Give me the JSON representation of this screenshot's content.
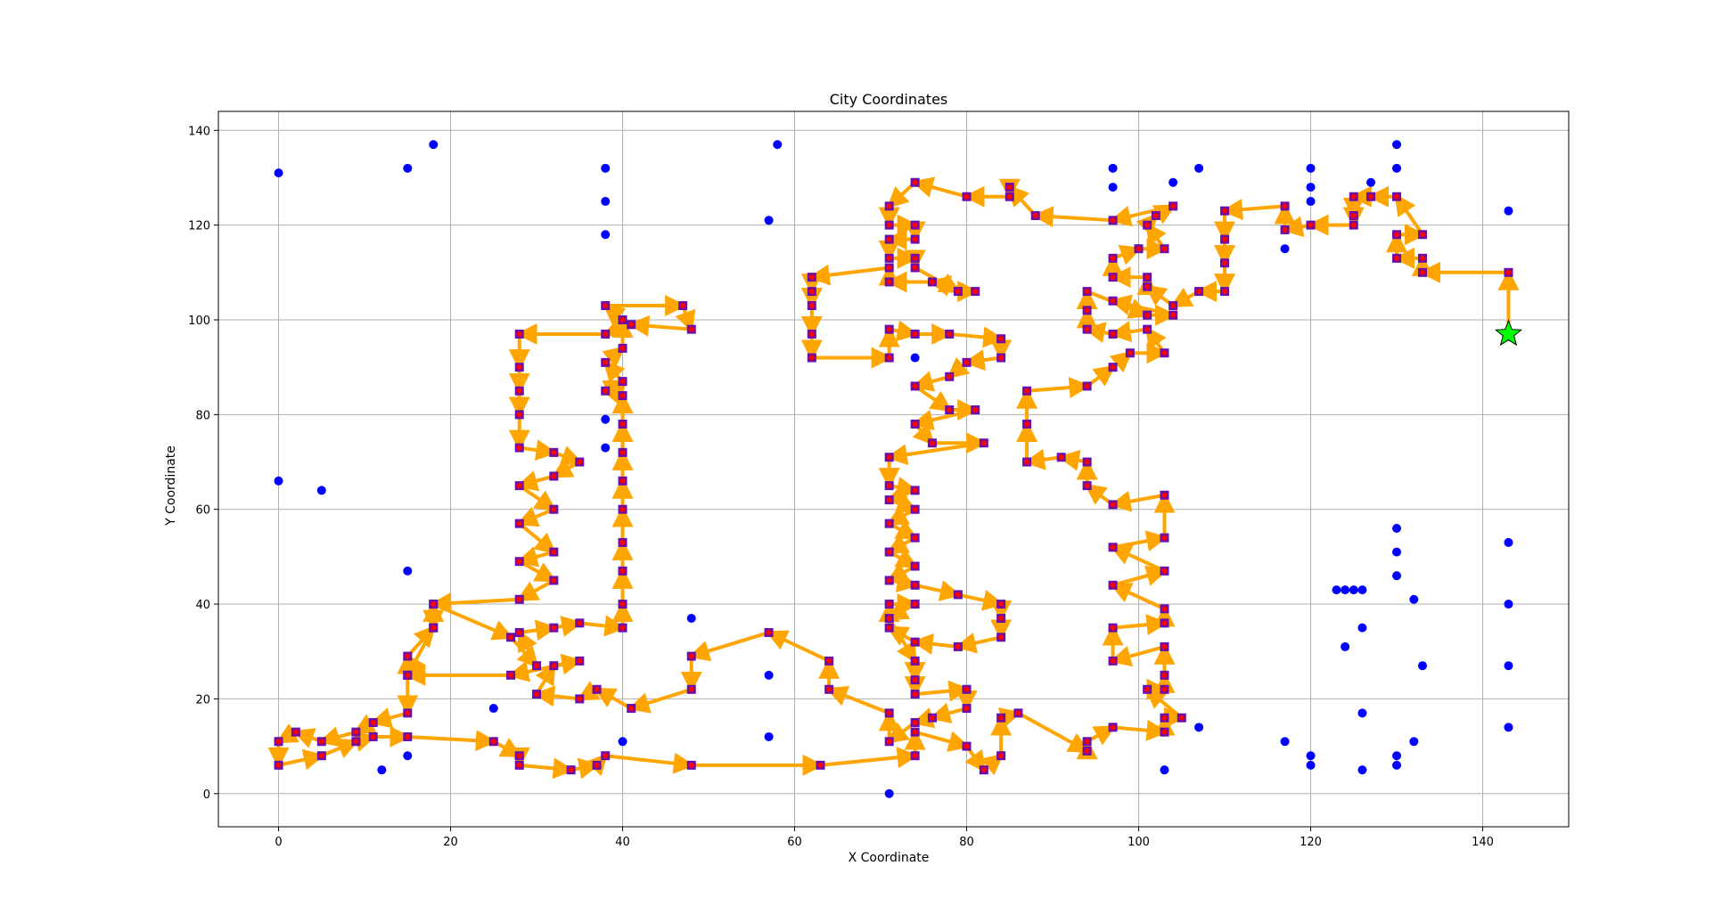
{
  "chart_data": {
    "type": "scatter",
    "title": "City Coordinates",
    "xlabel": "X Coordinate",
    "ylabel": "Y Coordinate",
    "xlim": [
      -7,
      150
    ],
    "ylim": [
      -7,
      144
    ],
    "xticks": [
      0,
      20,
      40,
      60,
      80,
      100,
      120,
      140
    ],
    "yticks": [
      0,
      20,
      40,
      60,
      80,
      100,
      120,
      140
    ],
    "grid": true,
    "colors": {
      "cities": "#0000ff",
      "visited": "#ff0000",
      "route": "#ffa500",
      "start": "#00ff00"
    },
    "start_city": [
      143,
      97
    ],
    "cities": [
      [
        0,
        131
      ],
      [
        0,
        66
      ],
      [
        12,
        5
      ],
      [
        15,
        8
      ],
      [
        15,
        47
      ],
      [
        15,
        132
      ],
      [
        18,
        137
      ],
      [
        5,
        64
      ],
      [
        25,
        18
      ],
      [
        38,
        132
      ],
      [
        38,
        125
      ],
      [
        38,
        118
      ],
      [
        38,
        79
      ],
      [
        38,
        73
      ],
      [
        40,
        11
      ],
      [
        48,
        37
      ],
      [
        57,
        25
      ],
      [
        57,
        12
      ],
      [
        57,
        121
      ],
      [
        58,
        137
      ],
      [
        71,
        0
      ],
      [
        74,
        92
      ],
      [
        97,
        132
      ],
      [
        97,
        128
      ],
      [
        103,
        5
      ],
      [
        104,
        129
      ],
      [
        107,
        132
      ],
      [
        107,
        14
      ],
      [
        117,
        11
      ],
      [
        117,
        115
      ],
      [
        120,
        132
      ],
      [
        120,
        128
      ],
      [
        120,
        125
      ],
      [
        120,
        8
      ],
      [
        120,
        6
      ],
      [
        123,
        43
      ],
      [
        124,
        43
      ],
      [
        125,
        43
      ],
      [
        126,
        43
      ],
      [
        124,
        31
      ],
      [
        126,
        35
      ],
      [
        126,
        17
      ],
      [
        126,
        5
      ],
      [
        127,
        129
      ],
      [
        130,
        137
      ],
      [
        130,
        132
      ],
      [
        130,
        56
      ],
      [
        130,
        51
      ],
      [
        130,
        46
      ],
      [
        130,
        8
      ],
      [
        130,
        6
      ],
      [
        132,
        41
      ],
      [
        132,
        11
      ],
      [
        133,
        27
      ],
      [
        143,
        123
      ],
      [
        143,
        53
      ],
      [
        143,
        40
      ],
      [
        143,
        27
      ],
      [
        143,
        14
      ]
    ],
    "route": [
      [
        143,
        97
      ],
      [
        143,
        110
      ],
      [
        133,
        110
      ],
      [
        133,
        113
      ],
      [
        130,
        113
      ],
      [
        130,
        118
      ],
      [
        133,
        118
      ],
      [
        130,
        126
      ],
      [
        127,
        126
      ],
      [
        125,
        126
      ],
      [
        125,
        122
      ],
      [
        125,
        120
      ],
      [
        120,
        120
      ],
      [
        117,
        119
      ],
      [
        117,
        124
      ],
      [
        110,
        123
      ],
      [
        110,
        117
      ],
      [
        110,
        112
      ],
      [
        110,
        106
      ],
      [
        107,
        106
      ],
      [
        104,
        103
      ],
      [
        101,
        107
      ],
      [
        101,
        109
      ],
      [
        97,
        109
      ],
      [
        97,
        113
      ],
      [
        100,
        115
      ],
      [
        103,
        115
      ],
      [
        101,
        120
      ],
      [
        102,
        122
      ],
      [
        104,
        124
      ],
      [
        97,
        121
      ],
      [
        88,
        122
      ],
      [
        85,
        128
      ],
      [
        85,
        126
      ],
      [
        80,
        126
      ],
      [
        74,
        129
      ],
      [
        71,
        124
      ],
      [
        71,
        120
      ],
      [
        74,
        120
      ],
      [
        74,
        117
      ],
      [
        71,
        117
      ],
      [
        71,
        113
      ],
      [
        74,
        113
      ],
      [
        74,
        111
      ],
      [
        79,
        106
      ],
      [
        81,
        106
      ],
      [
        76,
        108
      ],
      [
        71,
        108
      ],
      [
        71,
        111
      ],
      [
        62,
        109
      ],
      [
        62,
        106
      ],
      [
        62,
        103
      ],
      [
        62,
        97
      ],
      [
        62,
        92
      ],
      [
        71,
        92
      ],
      [
        71,
        98
      ],
      [
        74,
        97
      ],
      [
        78,
        97
      ],
      [
        84,
        96
      ],
      [
        84,
        92
      ],
      [
        80,
        91
      ],
      [
        78,
        88
      ],
      [
        74,
        86
      ],
      [
        78,
        81
      ],
      [
        81,
        81
      ],
      [
        74,
        78
      ],
      [
        76,
        74
      ],
      [
        82,
        74
      ],
      [
        71,
        71
      ],
      [
        71,
        65
      ],
      [
        74,
        64
      ],
      [
        71,
        62
      ],
      [
        74,
        60
      ],
      [
        71,
        57
      ],
      [
        74,
        54
      ],
      [
        71,
        51
      ],
      [
        74,
        48
      ],
      [
        71,
        45
      ],
      [
        74,
        44
      ],
      [
        79,
        42
      ],
      [
        84,
        40
      ],
      [
        84,
        37
      ],
      [
        84,
        33
      ],
      [
        79,
        31
      ],
      [
        74,
        32
      ],
      [
        71,
        35
      ],
      [
        71,
        40
      ],
      [
        74,
        40
      ],
      [
        71,
        37
      ],
      [
        74,
        28
      ],
      [
        74,
        24
      ],
      [
        74,
        21
      ],
      [
        80,
        22
      ],
      [
        80,
        18
      ],
      [
        76,
        16
      ],
      [
        74,
        15
      ],
      [
        71,
        11
      ],
      [
        71,
        17
      ],
      [
        64,
        22
      ],
      [
        64,
        28
      ],
      [
        57,
        34
      ],
      [
        48,
        29
      ],
      [
        48,
        22
      ],
      [
        41,
        18
      ],
      [
        37,
        22
      ],
      [
        35,
        20
      ],
      [
        30,
        21
      ],
      [
        32,
        27
      ],
      [
        35,
        28
      ],
      [
        27,
        25
      ],
      [
        15,
        25
      ],
      [
        15,
        29
      ],
      [
        18,
        35
      ],
      [
        18,
        40
      ],
      [
        27,
        33
      ],
      [
        30,
        27
      ],
      [
        28,
        34
      ],
      [
        32,
        35
      ],
      [
        35,
        36
      ],
      [
        40,
        35
      ],
      [
        40,
        40
      ],
      [
        40,
        47
      ],
      [
        40,
        53
      ],
      [
        40,
        60
      ],
      [
        40,
        66
      ],
      [
        40,
        72
      ],
      [
        40,
        78
      ],
      [
        40,
        84
      ],
      [
        38,
        85
      ],
      [
        40,
        87
      ],
      [
        38,
        91
      ],
      [
        40,
        94
      ],
      [
        40,
        100
      ],
      [
        38,
        103
      ],
      [
        47,
        103
      ],
      [
        48,
        98
      ],
      [
        41,
        99
      ],
      [
        38,
        97
      ],
      [
        28,
        97
      ],
      [
        28,
        90
      ],
      [
        28,
        85
      ],
      [
        28,
        80
      ],
      [
        28,
        73
      ],
      [
        32,
        72
      ],
      [
        35,
        70
      ],
      [
        32,
        67
      ],
      [
        28,
        65
      ],
      [
        32,
        60
      ],
      [
        28,
        57
      ],
      [
        32,
        51
      ],
      [
        28,
        49
      ],
      [
        32,
        45
      ],
      [
        28,
        41
      ],
      [
        18,
        40
      ],
      [
        18,
        35
      ],
      [
        15,
        25
      ],
      [
        15,
        17
      ],
      [
        11,
        15
      ],
      [
        9,
        13
      ],
      [
        5,
        11
      ],
      [
        2,
        13
      ],
      [
        0,
        11
      ],
      [
        0,
        6
      ],
      [
        5,
        8
      ],
      [
        9,
        11
      ],
      [
        11,
        12
      ],
      [
        15,
        12
      ],
      [
        25,
        11
      ],
      [
        28,
        8
      ],
      [
        28,
        6
      ],
      [
        34,
        5
      ],
      [
        37,
        6
      ],
      [
        38,
        8
      ],
      [
        48,
        6
      ],
      [
        63,
        6
      ],
      [
        74,
        8
      ],
      [
        74,
        13
      ],
      [
        80,
        10
      ],
      [
        82,
        5
      ],
      [
        84,
        8
      ],
      [
        84,
        16
      ],
      [
        86,
        17
      ],
      [
        94,
        9
      ],
      [
        94,
        11
      ],
      [
        97,
        14
      ],
      [
        103,
        13
      ],
      [
        103,
        16
      ],
      [
        105,
        16
      ],
      [
        101,
        22
      ],
      [
        103,
        22
      ],
      [
        103,
        25
      ],
      [
        103,
        31
      ],
      [
        97,
        28
      ],
      [
        97,
        35
      ],
      [
        103,
        36
      ],
      [
        103,
        39
      ],
      [
        97,
        44
      ],
      [
        103,
        47
      ],
      [
        97,
        52
      ],
      [
        103,
        54
      ],
      [
        103,
        63
      ],
      [
        97,
        61
      ],
      [
        94,
        65
      ],
      [
        94,
        70
      ],
      [
        91,
        71
      ],
      [
        87,
        70
      ],
      [
        87,
        78
      ],
      [
        87,
        85
      ],
      [
        94,
        86
      ],
      [
        97,
        90
      ],
      [
        99,
        93
      ],
      [
        103,
        93
      ],
      [
        101,
        98
      ],
      [
        97,
        97
      ],
      [
        94,
        98
      ],
      [
        94,
        102
      ],
      [
        94,
        106
      ],
      [
        101,
        101
      ],
      [
        104,
        101
      ],
      [
        97,
        104
      ]
    ]
  }
}
